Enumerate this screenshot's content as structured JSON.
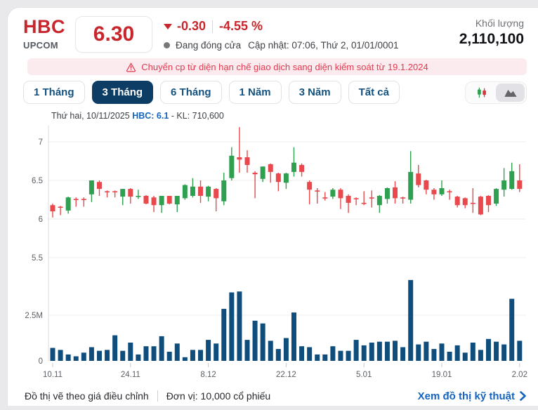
{
  "header": {
    "ticker": "HBC",
    "exchange": "UPCOM",
    "price": "6.30",
    "change": "-0.30",
    "change_pct": "-4.55 %",
    "market_status": "Đang đóng cửa",
    "updated": "Cập nhật: 07:06, Thứ 2, 01/01/0001",
    "volume_label": "Khối lượng",
    "volume_value": "2,110,100"
  },
  "banner": {
    "text": "Chuyển cp từ diện hạn chế giao dịch sang diện kiểm soát từ 19.1.2024"
  },
  "tabs": [
    {
      "label": "1 Tháng",
      "active": false
    },
    {
      "label": "3 Tháng",
      "active": true
    },
    {
      "label": "6 Tháng",
      "active": false
    },
    {
      "label": "1 Năm",
      "active": false
    },
    {
      "label": "3 Năm",
      "active": false
    },
    {
      "label": "Tất cả",
      "active": false
    }
  ],
  "legend": {
    "date_text": "Thứ hai, 10/11/2025",
    "symbol_price": "HBC: 6.1",
    "volume_text": "- KL: 710,600"
  },
  "footer": {
    "note1": "Đồ thị vẽ theo giá điều chỉnh",
    "note2": "Đơn vị: 10,000 cổ phiếu",
    "link": "Xem đồ thị kỹ thuật"
  },
  "colors": {
    "up": "#2ea04f",
    "down": "#e9494d",
    "volume": "#0f4e7c",
    "accent_red": "#c8252c",
    "navy": "#0d3c64",
    "link_blue": "#1565c0",
    "grid": "#ececee",
    "axis": "#dddde0"
  },
  "chart_data": {
    "type": "candlestick",
    "title": "HBC 3-month daily price and volume",
    "x_labels": [
      "10.11",
      "24.11",
      "8.12",
      "22.12",
      "5.01",
      "19.01",
      "2.02"
    ],
    "x_label_indices": [
      0,
      10,
      20,
      30,
      40,
      50,
      60
    ],
    "price_ticks": [
      7,
      6.5,
      6,
      5.5
    ],
    "price_axis_range": [
      5.35,
      7.25
    ],
    "volume_tick_labels": [
      "2.5M",
      "0"
    ],
    "volume_tick_values": [
      2500000,
      0
    ],
    "volume_axis_range": [
      0,
      5080000
    ],
    "legend_position": "top-left",
    "grid": true,
    "candles": [
      [
        6.18,
        6.2,
        6.02,
        6.1,
        710600
      ],
      [
        6.16,
        6.17,
        6.05,
        6.15,
        600000
      ],
      [
        6.11,
        6.29,
        6.07,
        6.28,
        350000
      ],
      [
        6.26,
        6.28,
        6.16,
        6.25,
        250000
      ],
      [
        6.26,
        6.28,
        6.16,
        6.25,
        450000
      ],
      [
        6.32,
        6.5,
        6.22,
        6.5,
        750000
      ],
      [
        6.48,
        6.5,
        6.3,
        6.39,
        550000
      ],
      [
        6.36,
        6.37,
        6.28,
        6.35,
        600000
      ],
      [
        6.36,
        6.37,
        6.28,
        6.35,
        1400000
      ],
      [
        6.29,
        6.39,
        6.18,
        6.39,
        550000
      ],
      [
        6.39,
        6.4,
        6.2,
        6.29,
        1000000
      ],
      [
        6.3,
        6.38,
        6.26,
        6.3,
        350000
      ],
      [
        6.3,
        6.31,
        6.19,
        6.2,
        800000
      ],
      [
        6.28,
        6.3,
        6.09,
        6.18,
        800000
      ],
      [
        6.18,
        6.3,
        6.08,
        6.3,
        1350000
      ],
      [
        6.3,
        6.3,
        6.19,
        6.2,
        500000
      ],
      [
        6.19,
        6.3,
        6.09,
        6.3,
        950000
      ],
      [
        6.27,
        6.45,
        6.25,
        6.44,
        200000
      ],
      [
        6.3,
        6.53,
        6.28,
        6.42,
        600000
      ],
      [
        6.42,
        6.5,
        6.21,
        6.3,
        600000
      ],
      [
        6.29,
        6.43,
        6.23,
        6.42,
        1150000
      ],
      [
        6.39,
        6.4,
        6.1,
        6.27,
        950000
      ],
      [
        6.23,
        6.6,
        6.18,
        6.5,
        2850000
      ],
      [
        6.53,
        6.93,
        6.5,
        6.82,
        3750000
      ],
      [
        6.8,
        7.19,
        6.6,
        6.77,
        3800000
      ],
      [
        6.8,
        6.89,
        6.6,
        6.7,
        1150000
      ],
      [
        6.6,
        6.62,
        6.27,
        6.58,
        2200000
      ],
      [
        6.52,
        6.68,
        6.48,
        6.68,
        2050000
      ],
      [
        6.71,
        6.72,
        6.47,
        6.61,
        1100000
      ],
      [
        6.59,
        6.6,
        6.36,
        6.48,
        650000
      ],
      [
        6.47,
        6.6,
        6.39,
        6.59,
        1250000
      ],
      [
        6.61,
        6.93,
        6.55,
        6.73,
        2650000
      ],
      [
        6.7,
        6.72,
        6.55,
        6.61,
        800000
      ],
      [
        6.48,
        6.5,
        6.19,
        6.38,
        750000
      ],
      [
        6.37,
        6.4,
        6.2,
        6.36,
        350000
      ],
      [
        6.28,
        6.35,
        6.24,
        6.27,
        350000
      ],
      [
        6.29,
        6.4,
        6.26,
        6.38,
        800000
      ],
      [
        6.38,
        6.4,
        6.13,
        6.27,
        550000
      ],
      [
        6.3,
        6.32,
        6.08,
        6.21,
        550000
      ],
      [
        6.27,
        6.28,
        6.18,
        6.26,
        1150000
      ],
      [
        6.21,
        6.36,
        6.18,
        6.2,
        850000
      ],
      [
        6.28,
        6.37,
        6.15,
        6.27,
        1000000
      ],
      [
        6.18,
        6.31,
        6.08,
        6.3,
        1050000
      ],
      [
        6.26,
        6.41,
        6.2,
        6.4,
        1050000
      ],
      [
        6.41,
        6.49,
        6.2,
        6.27,
        1100000
      ],
      [
        6.28,
        6.29,
        6.2,
        6.27,
        750000
      ],
      [
        6.25,
        6.88,
        6.2,
        6.61,
        4430000
      ],
      [
        6.59,
        6.7,
        6.41,
        6.44,
        900000
      ],
      [
        6.5,
        6.51,
        6.32,
        6.38,
        1050000
      ],
      [
        6.38,
        6.4,
        6.25,
        6.32,
        650000
      ],
      [
        6.32,
        6.5,
        6.3,
        6.4,
        950000
      ],
      [
        6.36,
        6.38,
        6.25,
        6.35,
        500000
      ],
      [
        6.29,
        6.3,
        6.15,
        6.18,
        850000
      ],
      [
        6.27,
        6.28,
        6.14,
        6.18,
        450000
      ],
      [
        6.21,
        6.4,
        6.08,
        6.2,
        1000000
      ],
      [
        6.29,
        6.3,
        6.05,
        6.06,
        600000
      ],
      [
        6.3,
        6.31,
        6.09,
        6.18,
        1200000
      ],
      [
        6.2,
        6.4,
        6.17,
        6.39,
        1050000
      ],
      [
        6.38,
        6.66,
        6.29,
        6.5,
        900000
      ],
      [
        6.39,
        6.73,
        6.38,
        6.62,
        3400000
      ],
      [
        6.5,
        6.71,
        6.35,
        6.39,
        1100000
      ]
    ]
  }
}
